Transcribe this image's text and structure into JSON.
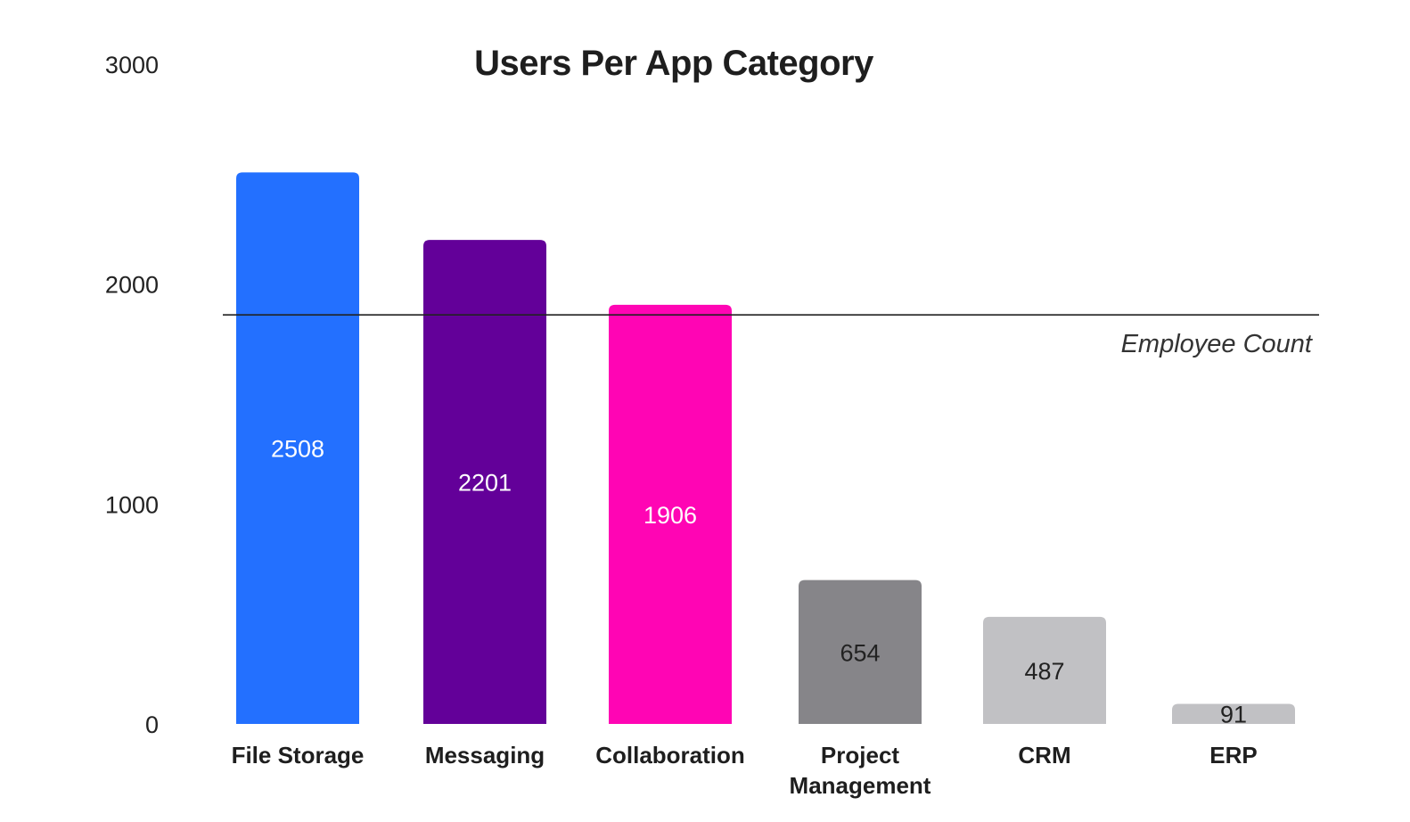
{
  "chart_data": {
    "type": "bar",
    "title": "Users Per App Category",
    "xlabel": "",
    "ylabel": "",
    "ylim": [
      0,
      3000
    ],
    "yticks": [
      0,
      1000,
      2000,
      3000
    ],
    "grid": false,
    "legend": "none",
    "categories": [
      "File Storage",
      "Messaging",
      "Collaboration",
      "Project Management",
      "CRM",
      "ERP"
    ],
    "category_lines": [
      [
        "File Storage"
      ],
      [
        "Messaging"
      ],
      [
        "Collaboration"
      ],
      [
        "Project",
        "Management"
      ],
      [
        "CRM"
      ],
      [
        "ERP"
      ]
    ],
    "values": [
      2508,
      2201,
      1906,
      654,
      487,
      91
    ],
    "data_labels": [
      "2508",
      "2201",
      "1906",
      "654",
      "487",
      "91"
    ],
    "colors": [
      "#2370ff",
      "#630099",
      "#ff05b4",
      "#868589",
      "#c1c1c4",
      "#c1c1c4"
    ],
    "label_colors": [
      "#ffffff",
      "#ffffff",
      "#ffffff",
      "#222222",
      "#222222",
      "#222222"
    ],
    "reference_line": {
      "label": "Employee Count",
      "value": 1860,
      "color": "#222222"
    }
  }
}
